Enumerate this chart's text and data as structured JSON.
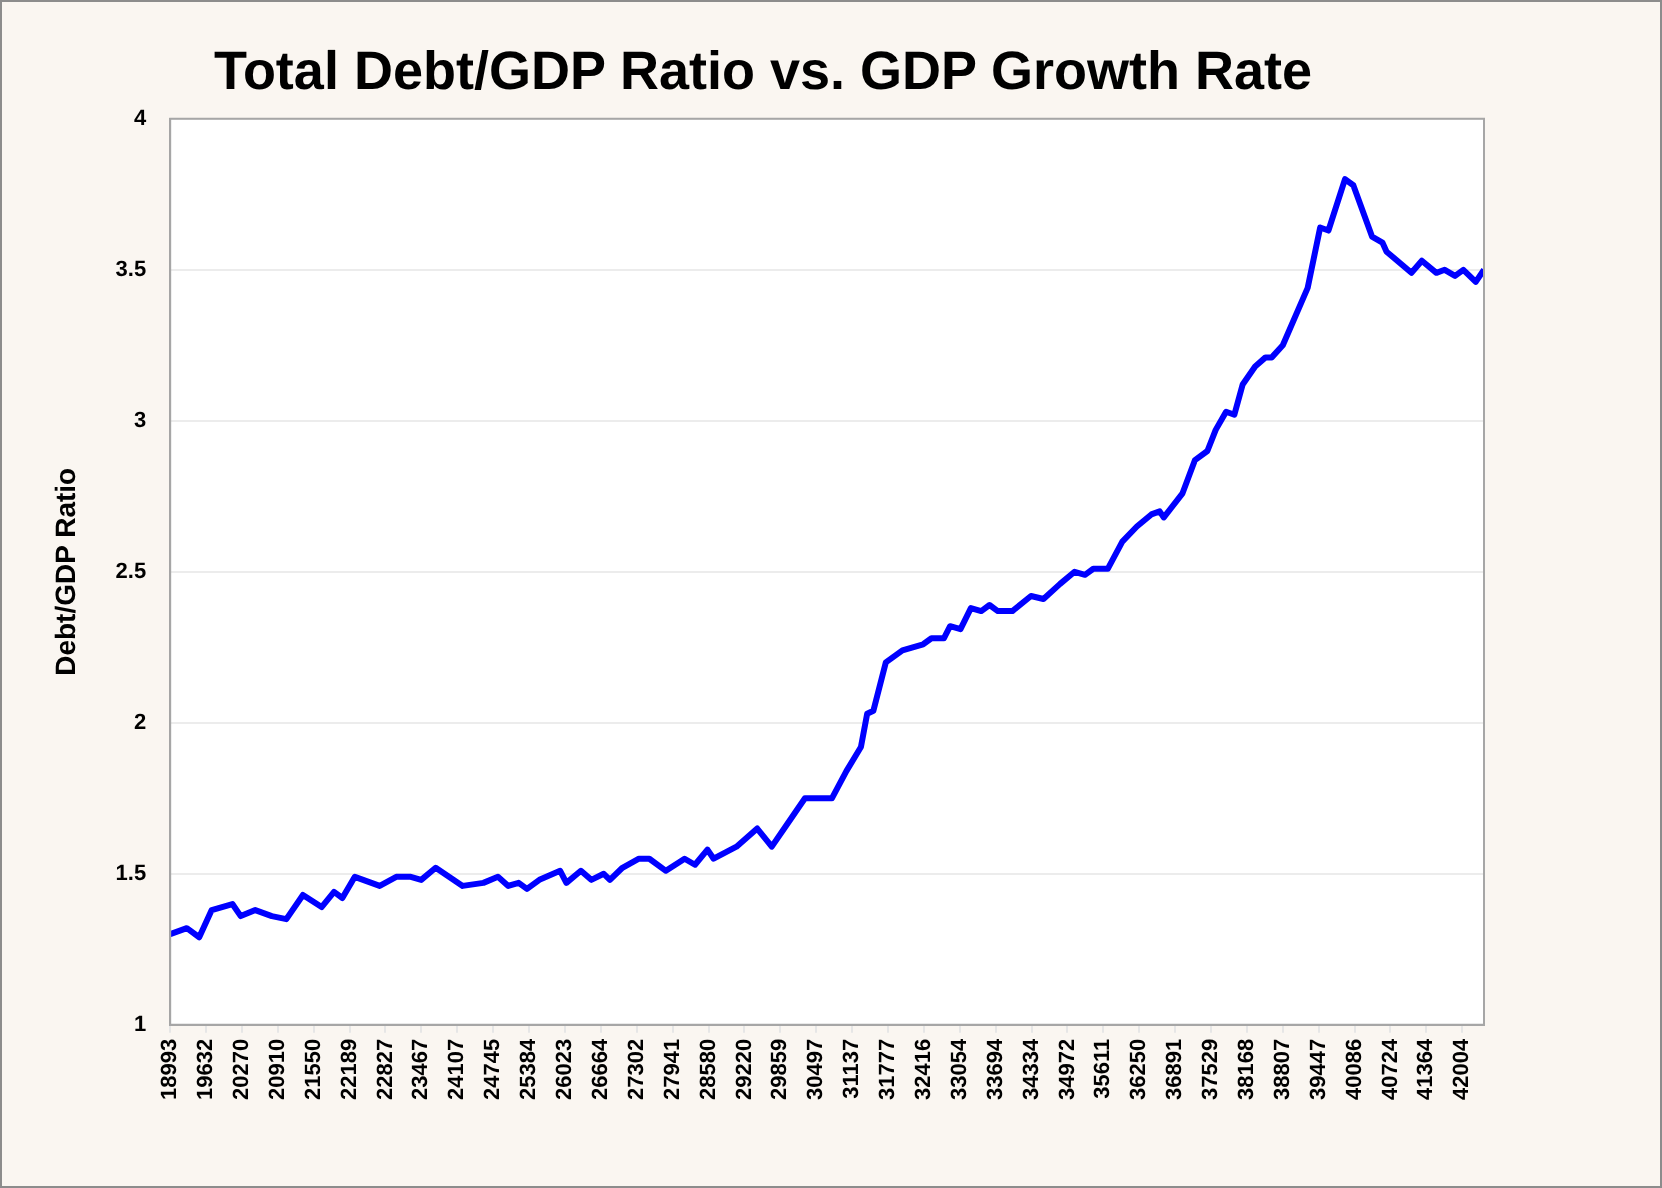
{
  "chart_data": {
    "type": "line",
    "title": "Total Debt/GDP Ratio vs. GDP Growth Rate",
    "ylabel": "Debt/GDP Ratio",
    "series": [
      {
        "color": "#0000ff",
        "x": [
          18993,
          19289,
          19510,
          19732,
          20101,
          20249,
          20508,
          20803,
          21062,
          21357,
          21690,
          21911,
          22059,
          22281,
          22724,
          23019,
          23278,
          23463,
          23721,
          24201,
          24571,
          24830,
          25014,
          25199,
          25347,
          25568,
          25938,
          26049,
          26307,
          26492,
          26714,
          26824,
          27046,
          27341,
          27526,
          27821,
          28154,
          28339,
          28561,
          28671,
          29078,
          29447,
          29706,
          30001,
          30297,
          30777,
          31035,
          31294,
          31405,
          31516,
          31737,
          32033,
          32402,
          32550,
          32771,
          32882,
          33067,
          33252,
          33437,
          33584,
          33732,
          33991,
          34323,
          34545,
          34841,
          35099,
          35284,
          35432,
          35690,
          35949,
          36208,
          36466,
          36614,
          36688,
          37021,
          37243,
          37464,
          37612,
          37797,
          37944,
          38092,
          38314,
          38499,
          38610,
          38807,
          39250,
          39472,
          39620,
          39915,
          40063,
          40396,
          40581,
          40655,
          41098,
          41283,
          41542,
          41690,
          41874,
          42022,
          42243,
          42390
        ],
        "values": [
          1.3,
          1.32,
          1.29,
          1.38,
          1.4,
          1.36,
          1.38,
          1.36,
          1.35,
          1.43,
          1.39,
          1.44,
          1.42,
          1.49,
          1.46,
          1.49,
          1.49,
          1.48,
          1.52,
          1.46,
          1.47,
          1.49,
          1.46,
          1.47,
          1.45,
          1.48,
          1.51,
          1.47,
          1.51,
          1.48,
          1.5,
          1.48,
          1.52,
          1.55,
          1.55,
          1.51,
          1.55,
          1.53,
          1.58,
          1.55,
          1.59,
          1.65,
          1.59,
          1.67,
          1.75,
          1.75,
          1.84,
          1.92,
          2.03,
          2.04,
          2.2,
          2.24,
          2.26,
          2.28,
          2.28,
          2.32,
          2.31,
          2.38,
          2.37,
          2.39,
          2.37,
          2.37,
          2.42,
          2.41,
          2.46,
          2.5,
          2.49,
          2.51,
          2.51,
          2.6,
          2.65,
          2.69,
          2.7,
          2.68,
          2.76,
          2.87,
          2.9,
          2.97,
          3.03,
          3.02,
          3.12,
          3.18,
          3.21,
          3.21,
          3.25,
          3.44,
          3.64,
          3.63,
          3.8,
          3.78,
          3.61,
          3.59,
          3.56,
          3.49,
          3.53,
          3.49,
          3.5,
          3.48,
          3.5,
          3.46,
          3.5
        ]
      }
    ],
    "xlim": [
      18993,
      42390
    ],
    "xticks": [
      18993,
      19632,
      20270,
      20910,
      21550,
      22189,
      22827,
      23467,
      24107,
      24745,
      25384,
      26023,
      26664,
      27302,
      27941,
      28580,
      29220,
      29859,
      30497,
      31137,
      31777,
      32416,
      33054,
      33694,
      34334,
      34972,
      35611,
      36250,
      36891,
      37529,
      38168,
      38807,
      39447,
      40086,
      40724,
      41364,
      42004
    ],
    "ylim": [
      1,
      4
    ],
    "yticks": [
      1,
      1.5,
      2,
      2.5,
      3,
      3.5,
      4
    ],
    "grid": "y",
    "legend": false,
    "marker": "none",
    "line_style": "solid"
  }
}
